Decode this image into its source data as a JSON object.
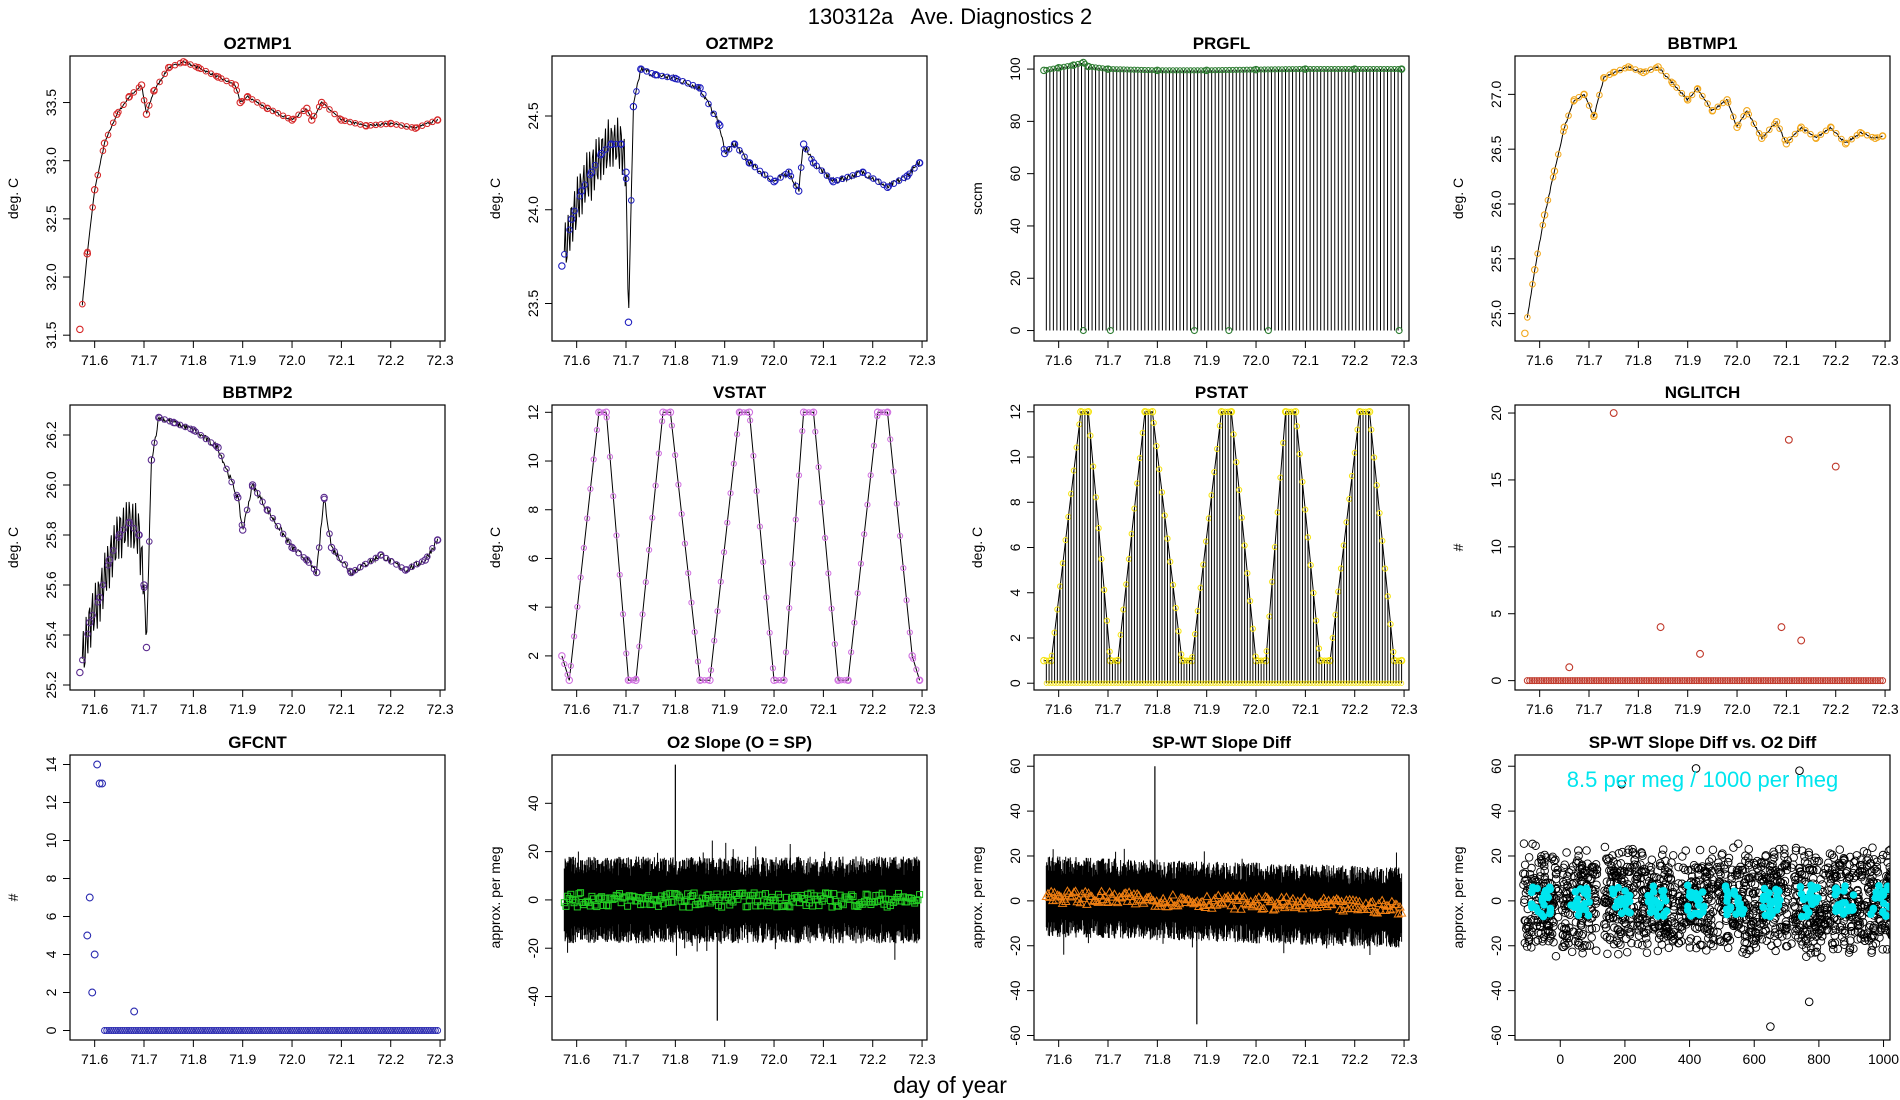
{
  "title": "130312a   Ave. Diagnostics 2",
  "xlabel": "day of year",
  "chart_data": [
    {
      "id": "o2tmp1",
      "type": "line",
      "title": "O2TMP1",
      "ylabel": "deg. C",
      "xlim": [
        71.55,
        72.31
      ],
      "ylim": [
        31.45,
        33.9
      ],
      "xticks": [
        71.6,
        71.7,
        71.8,
        71.9,
        72.0,
        72.1,
        72.2,
        72.3
      ],
      "yticks": [
        31.5,
        32.0,
        32.5,
        33.0,
        33.5
      ],
      "color": "#d62728",
      "x": [
        71.57,
        71.585,
        71.6,
        71.62,
        71.645,
        71.67,
        71.695,
        71.705,
        71.72,
        71.75,
        71.78,
        71.81,
        71.85,
        71.885,
        71.895,
        71.91,
        71.95,
        72.0,
        72.03,
        72.04,
        72.06,
        72.1,
        72.15,
        72.2,
        72.25,
        72.295
      ],
      "y": [
        31.55,
        32.2,
        32.75,
        33.15,
        33.4,
        33.55,
        33.65,
        33.4,
        33.6,
        33.8,
        33.85,
        33.8,
        33.72,
        33.65,
        33.5,
        33.55,
        33.45,
        33.35,
        33.45,
        33.35,
        33.5,
        33.35,
        33.3,
        33.32,
        33.28,
        33.35
      ]
    },
    {
      "id": "o2tmp2",
      "type": "line",
      "title": "O2TMP2",
      "ylabel": "deg. C",
      "xlim": [
        71.55,
        72.31
      ],
      "ylim": [
        23.3,
        24.82
      ],
      "xticks": [
        71.6,
        71.7,
        71.8,
        71.9,
        72.0,
        72.1,
        72.2,
        72.3
      ],
      "yticks": [
        23.5,
        24.0,
        24.5
      ],
      "color": "#1f1fbf",
      "x": [
        71.57,
        71.59,
        71.61,
        71.63,
        71.65,
        71.67,
        71.69,
        71.7,
        71.705,
        71.715,
        71.73,
        71.76,
        71.8,
        71.85,
        71.89,
        71.9,
        71.92,
        71.95,
        72.0,
        72.03,
        72.05,
        72.06,
        72.08,
        72.12,
        72.18,
        72.23,
        72.27,
        72.295
      ],
      "y": [
        23.7,
        23.95,
        24.1,
        24.2,
        24.3,
        24.35,
        24.35,
        24.2,
        23.4,
        24.55,
        24.75,
        24.72,
        24.7,
        24.65,
        24.45,
        24.3,
        24.35,
        24.25,
        24.15,
        24.2,
        24.1,
        24.35,
        24.25,
        24.15,
        24.2,
        24.12,
        24.18,
        24.25
      ]
    },
    {
      "id": "prgfl",
      "type": "line",
      "title": "PRGFL",
      "ylabel": "sccm",
      "xlim": [
        71.55,
        72.31
      ],
      "ylim": [
        -4,
        105
      ],
      "xticks": [
        71.6,
        71.7,
        71.8,
        71.9,
        72.0,
        72.1,
        72.2,
        72.3
      ],
      "yticks": [
        0,
        20,
        40,
        60,
        80,
        100
      ],
      "color": "#2e7d32",
      "x": [
        71.57,
        71.6,
        71.63,
        71.65,
        71.66,
        71.7,
        71.8,
        71.9,
        72.0,
        72.1,
        72.2,
        72.295
      ],
      "y": [
        99.5,
        100.5,
        101.5,
        102.5,
        101,
        100,
        99.5,
        99.5,
        99.8,
        100,
        100,
        100
      ]
    },
    {
      "id": "bbtmp1",
      "type": "line",
      "title": "BBTMP1",
      "ylabel": "deg. C",
      "xlim": [
        71.55,
        72.31
      ],
      "ylim": [
        24.75,
        27.35
      ],
      "xticks": [
        71.6,
        71.7,
        71.8,
        71.9,
        72.0,
        72.1,
        72.2,
        72.3
      ],
      "yticks": [
        25.0,
        25.5,
        26.0,
        26.5,
        27.0
      ],
      "color": "#f2a81d",
      "x": [
        71.57,
        71.59,
        71.61,
        71.63,
        71.65,
        71.67,
        71.69,
        71.71,
        71.73,
        71.75,
        71.78,
        71.81,
        71.84,
        71.87,
        71.9,
        71.92,
        71.95,
        71.98,
        72.0,
        72.02,
        72.05,
        72.08,
        72.1,
        72.13,
        72.16,
        72.19,
        72.22,
        72.25,
        72.28,
        72.295
      ],
      "y": [
        24.82,
        25.4,
        25.9,
        26.3,
        26.7,
        26.95,
        27.0,
        26.8,
        27.15,
        27.2,
        27.25,
        27.2,
        27.25,
        27.1,
        26.95,
        27.05,
        26.85,
        26.95,
        26.7,
        26.85,
        26.6,
        26.75,
        26.55,
        26.7,
        26.6,
        26.7,
        26.55,
        26.65,
        26.6,
        26.62
      ]
    },
    {
      "id": "bbtmp2",
      "type": "line",
      "title": "BBTMP2",
      "ylabel": "deg. C",
      "xlim": [
        71.55,
        72.31
      ],
      "ylim": [
        25.18,
        26.32
      ],
      "xticks": [
        71.6,
        71.7,
        71.8,
        71.9,
        72.0,
        72.1,
        72.2,
        72.3
      ],
      "yticks": [
        25.2,
        25.4,
        25.6,
        25.8,
        26.0,
        26.2
      ],
      "color": "#5b2c8f",
      "x": [
        71.57,
        71.59,
        71.61,
        71.63,
        71.65,
        71.67,
        71.69,
        71.7,
        71.705,
        71.715,
        71.73,
        71.76,
        71.8,
        71.85,
        71.89,
        71.9,
        71.92,
        71.95,
        72.0,
        72.03,
        72.05,
        72.065,
        72.08,
        72.12,
        72.18,
        72.23,
        72.27,
        72.295
      ],
      "y": [
        25.25,
        25.45,
        25.55,
        25.7,
        25.8,
        25.85,
        25.8,
        25.6,
        25.35,
        26.1,
        26.27,
        26.25,
        26.22,
        26.15,
        25.95,
        25.82,
        26.0,
        25.9,
        25.75,
        25.7,
        25.65,
        25.95,
        25.75,
        25.65,
        25.72,
        25.66,
        25.7,
        25.78
      ]
    },
    {
      "id": "vstat",
      "type": "line",
      "title": "VSTAT",
      "ylabel": "deg. C",
      "xlim": [
        71.55,
        72.31
      ],
      "ylim": [
        0.6,
        12.3
      ],
      "xticks": [
        71.6,
        71.7,
        71.8,
        71.9,
        72.0,
        72.1,
        72.2,
        72.3
      ],
      "yticks": [
        2,
        4,
        6,
        8,
        10,
        12
      ],
      "color": "#d070e0",
      "x": [
        71.57,
        71.585,
        71.645,
        71.66,
        71.705,
        71.72,
        71.775,
        71.79,
        71.85,
        71.87,
        71.93,
        71.95,
        72.0,
        72.02,
        72.06,
        72.08,
        72.13,
        72.15,
        72.21,
        72.23,
        72.28,
        72.295
      ],
      "y": [
        2,
        1,
        12,
        12,
        1,
        1,
        12,
        12,
        1,
        1,
        12,
        12,
        1,
        1,
        12,
        12,
        1,
        1,
        12,
        12,
        2,
        1
      ]
    },
    {
      "id": "pstat",
      "type": "line",
      "title": "PSTAT",
      "ylabel": "deg. C",
      "xlim": [
        71.55,
        72.31
      ],
      "ylim": [
        -0.3,
        12.3
      ],
      "xticks": [
        71.6,
        71.7,
        71.8,
        71.9,
        72.0,
        72.1,
        72.2,
        72.3
      ],
      "yticks": [
        0,
        2,
        4,
        6,
        8,
        10,
        12
      ],
      "color": "#f5e311",
      "x": [
        71.57,
        71.585,
        71.645,
        71.66,
        71.705,
        71.72,
        71.775,
        71.79,
        71.85,
        71.87,
        71.93,
        71.95,
        72.0,
        72.02,
        72.06,
        72.08,
        72.13,
        72.15,
        72.21,
        72.23,
        72.28,
        72.295
      ],
      "y": [
        1,
        1,
        12,
        12,
        1,
        1,
        12,
        12,
        1,
        1,
        12,
        12,
        1,
        1,
        12,
        12,
        1,
        1,
        12,
        12,
        1,
        1
      ]
    },
    {
      "id": "nglitch",
      "type": "scatter",
      "title": "NGLITCH",
      "ylabel": "#",
      "xlim": [
        71.55,
        72.31
      ],
      "ylim": [
        -0.7,
        20.6
      ],
      "xticks": [
        71.6,
        71.7,
        71.8,
        71.9,
        72.0,
        72.1,
        72.2,
        72.3
      ],
      "yticks": [
        0,
        5,
        10,
        15,
        20
      ],
      "color": "#c0392b",
      "x": [
        71.66,
        71.75,
        71.845,
        71.925,
        72.09,
        72.105,
        72.13,
        72.2
      ],
      "y": [
        1,
        20,
        4,
        2,
        4,
        18,
        3,
        16
      ]
    },
    {
      "id": "gfcnt",
      "type": "scatter",
      "title": "GFCNT",
      "ylabel": "#",
      "xlim": [
        71.55,
        72.31
      ],
      "ylim": [
        -0.5,
        14.5
      ],
      "xticks": [
        71.6,
        71.7,
        71.8,
        71.9,
        72.0,
        72.1,
        72.2,
        72.3
      ],
      "yticks": [
        0,
        2,
        4,
        6,
        8,
        10,
        12,
        14
      ],
      "color": "#2a2ab0",
      "x": [
        71.585,
        71.59,
        71.595,
        71.6,
        71.605,
        71.61,
        71.615,
        71.68
      ],
      "y": [
        5,
        7,
        2,
        4,
        14,
        13,
        13,
        1
      ]
    },
    {
      "id": "o2slope",
      "type": "line",
      "title": "O2 Slope (O = SP)",
      "ylabel": "approx. per meg",
      "xlim": [
        71.55,
        72.31
      ],
      "ylim": [
        -58,
        60
      ],
      "xticks": [
        71.6,
        71.7,
        71.8,
        71.9,
        72.0,
        72.1,
        72.2,
        72.3
      ],
      "yticks": [
        -40,
        -20,
        0,
        20,
        40
      ],
      "color": "#22cc22",
      "x": [
        71.57,
        71.79,
        71.8,
        71.88,
        71.885,
        72.295
      ],
      "y": [
        0,
        0,
        56,
        0,
        -50,
        0
      ]
    },
    {
      "id": "spwtdiff",
      "type": "line",
      "title": "SP-WT Slope Diff",
      "ylabel": "approx. per meg",
      "xlim": [
        71.55,
        72.31
      ],
      "ylim": [
        -62,
        65
      ],
      "xticks": [
        71.6,
        71.7,
        71.8,
        71.9,
        72.0,
        72.1,
        72.2,
        72.3
      ],
      "yticks": [
        -60,
        -40,
        -20,
        0,
        20,
        40,
        60
      ],
      "color": "#f07f12",
      "x": [
        71.57,
        71.79,
        71.795,
        71.875,
        71.88,
        72.295
      ],
      "y": [
        2,
        0,
        60,
        0,
        -55,
        -3
      ]
    },
    {
      "id": "spwt_vs_o2",
      "type": "scatter",
      "title": "SP-WT Slope Diff vs. O2 Diff",
      "ylabel": "approx. per meg",
      "xlim": [
        -140,
        1020
      ],
      "ylim": [
        -62,
        65
      ],
      "xticks": [
        0,
        200,
        400,
        600,
        800,
        1000
      ],
      "yticks": [
        -60,
        -40,
        -20,
        0,
        20,
        40,
        60
      ],
      "color": "#00e5ee",
      "annotation": "8.5 per meg / 1000 per meg",
      "x": [
        190,
        420,
        650,
        740,
        770
      ],
      "y": [
        52,
        59,
        -56,
        58,
        -45
      ]
    }
  ]
}
